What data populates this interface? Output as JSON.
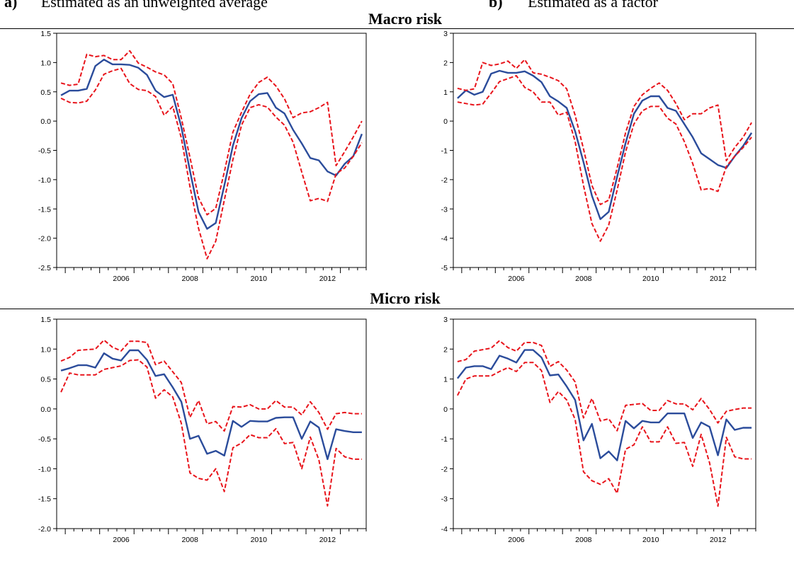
{
  "header": {
    "left_marker": "a)",
    "left_text": "Estimated as an unweighted average",
    "right_marker": "b)",
    "right_text": "Estimated as a factor"
  },
  "sections": [
    {
      "title": "Macro risk"
    },
    {
      "title": "Micro risk"
    }
  ],
  "colors": {
    "estimate": "#2b4c9b",
    "band": "#e8141b",
    "axis": "#000000"
  },
  "chart_data": [
    {
      "type": "line",
      "panel": "Macro risk, a)",
      "x": [
        2004.75,
        2005,
        2005.25,
        2005.5,
        2005.75,
        2006,
        2006.25,
        2006.5,
        2006.75,
        2007,
        2007.25,
        2007.5,
        2007.75,
        2008,
        2008.25,
        2008.5,
        2008.75,
        2009,
        2009.25,
        2009.5,
        2009.75,
        2010,
        2010.25,
        2010.5,
        2010.75,
        2011,
        2011.25,
        2011.5,
        2011.75,
        2012,
        2012.25,
        2012.5,
        2012.75,
        2013,
        2013.25,
        2013.5
      ],
      "ylim": [
        -2.5,
        1.5
      ],
      "yticks": [
        "1.5",
        "1.0",
        "0.5",
        "0.0",
        "-0.5",
        "-1.0",
        "-1.5",
        "-2.0",
        "-2.5"
      ],
      "xtick_labels": [
        "2006",
        "2008",
        "2010",
        "2012"
      ],
      "series": [
        {
          "role": "estimate",
          "style": "solid",
          "values": [
            0.44,
            0.52,
            0.52,
            0.55,
            0.94,
            1.05,
            0.97,
            0.97,
            0.96,
            0.91,
            0.79,
            0.52,
            0.41,
            0.45,
            -0.1,
            -0.85,
            -1.55,
            -1.84,
            -1.74,
            -1.1,
            -0.42,
            0.05,
            0.34,
            0.46,
            0.48,
            0.23,
            0.13,
            -0.15,
            -0.38,
            -0.63,
            -0.67,
            -0.86,
            -0.93,
            -0.73,
            -0.6,
            -0.22
          ]
        },
        {
          "role": "upper",
          "style": "dashed",
          "values": [
            0.65,
            0.61,
            0.63,
            1.14,
            1.1,
            1.12,
            1.05,
            1.05,
            1.2,
            0.99,
            0.92,
            0.84,
            0.79,
            0.64,
            0.05,
            -0.62,
            -1.31,
            -1.6,
            -1.49,
            -0.87,
            -0.19,
            0.15,
            0.46,
            0.66,
            0.75,
            0.6,
            0.38,
            0.06,
            0.14,
            0.16,
            0.23,
            0.32,
            -0.76,
            -0.52,
            -0.27,
            0.0
          ]
        },
        {
          "role": "lower",
          "style": "dashed",
          "values": [
            0.39,
            0.32,
            0.31,
            0.34,
            0.53,
            0.8,
            0.86,
            0.9,
            0.64,
            0.54,
            0.52,
            0.42,
            0.1,
            0.25,
            -0.29,
            -1.12,
            -1.83,
            -2.35,
            -2.05,
            -1.35,
            -0.66,
            -0.07,
            0.23,
            0.28,
            0.24,
            0.07,
            -0.07,
            -0.36,
            -0.87,
            -1.36,
            -1.32,
            -1.37,
            -0.9,
            -0.8,
            -0.6,
            -0.37
          ]
        }
      ]
    },
    {
      "type": "line",
      "panel": "Macro risk, b)",
      "x": [
        2004.75,
        2005,
        2005.25,
        2005.5,
        2005.75,
        2006,
        2006.25,
        2006.5,
        2006.75,
        2007,
        2007.25,
        2007.5,
        2007.75,
        2008,
        2008.25,
        2008.5,
        2008.75,
        2009,
        2009.25,
        2009.5,
        2009.75,
        2010,
        2010.25,
        2010.5,
        2010.75,
        2011,
        2011.25,
        2011.5,
        2011.75,
        2012,
        2012.25,
        2012.5,
        2012.75,
        2013,
        2013.25,
        2013.5
      ],
      "ylim": [
        -5,
        3
      ],
      "yticks": [
        "3",
        "2",
        "1",
        "0",
        "-1",
        "-2",
        "-3",
        "-4",
        "-5"
      ],
      "xtick_labels": [
        "2006",
        "2008",
        "2010",
        "2012"
      ],
      "series": [
        {
          "role": "estimate",
          "style": "solid",
          "values": [
            0.78,
            1.05,
            0.9,
            1.0,
            1.62,
            1.72,
            1.65,
            1.65,
            1.7,
            1.55,
            1.33,
            0.85,
            0.67,
            0.45,
            -0.35,
            -1.4,
            -2.55,
            -3.35,
            -3.1,
            -1.9,
            -0.75,
            0.25,
            0.7,
            0.85,
            0.85,
            0.45,
            0.35,
            -0.1,
            -0.55,
            -1.1,
            -1.3,
            -1.5,
            -1.6,
            -1.2,
            -0.85,
            -0.4
          ]
        },
        {
          "role": "upper",
          "style": "dashed",
          "values": [
            1.12,
            1.05,
            1.1,
            2.0,
            1.9,
            1.95,
            2.05,
            1.8,
            2.1,
            1.65,
            1.6,
            1.5,
            1.38,
            1.1,
            0.2,
            -0.95,
            -2.2,
            -2.85,
            -2.7,
            -1.6,
            -0.4,
            0.5,
            0.9,
            1.12,
            1.3,
            1.05,
            0.6,
            0.05,
            0.25,
            0.25,
            0.45,
            0.55,
            -1.35,
            -0.9,
            -0.55,
            -0.05
          ]
        },
        {
          "role": "lower",
          "style": "dashed",
          "values": [
            0.65,
            0.6,
            0.55,
            0.58,
            0.95,
            1.35,
            1.45,
            1.55,
            1.15,
            1.0,
            0.65,
            0.65,
            0.2,
            0.3,
            -0.7,
            -2.2,
            -3.5,
            -4.1,
            -3.55,
            -2.35,
            -1.05,
            -0.1,
            0.35,
            0.5,
            0.5,
            0.1,
            -0.1,
            -0.7,
            -1.45,
            -2.35,
            -2.3,
            -2.4,
            -1.55,
            -1.2,
            -0.9,
            -0.55
          ]
        }
      ]
    },
    {
      "type": "line",
      "panel": "Micro risk, a)",
      "x": [
        2004.75,
        2005,
        2005.25,
        2005.5,
        2005.75,
        2006,
        2006.25,
        2006.5,
        2006.75,
        2007,
        2007.25,
        2007.5,
        2007.75,
        2008,
        2008.25,
        2008.5,
        2008.75,
        2009,
        2009.25,
        2009.5,
        2009.75,
        2010,
        2010.25,
        2010.5,
        2010.75,
        2011,
        2011.25,
        2011.5,
        2011.75,
        2012,
        2012.25,
        2012.5,
        2012.75,
        2013,
        2013.25,
        2013.5
      ],
      "ylim": [
        -2.0,
        1.5
      ],
      "yticks": [
        "1.5",
        "1.0",
        "0.5",
        "0.0",
        "-0.5",
        "-1.0",
        "-1.5",
        "-2.0"
      ],
      "xtick_labels": [
        "2006",
        "2008",
        "2010",
        "2012"
      ],
      "series": [
        {
          "role": "estimate",
          "style": "solid",
          "values": [
            0.64,
            0.68,
            0.73,
            0.73,
            0.69,
            0.93,
            0.84,
            0.81,
            0.98,
            0.98,
            0.82,
            0.55,
            0.58,
            0.36,
            0.12,
            -0.5,
            -0.45,
            -0.75,
            -0.7,
            -0.78,
            -0.2,
            -0.3,
            -0.2,
            -0.21,
            -0.21,
            -0.15,
            -0.14,
            -0.14,
            -0.5,
            -0.21,
            -0.31,
            -0.84,
            -0.34,
            -0.37,
            -0.39,
            -0.39
          ]
        },
        {
          "role": "upper",
          "style": "dashed",
          "values": [
            0.8,
            0.86,
            0.98,
            0.99,
            1.0,
            1.15,
            1.03,
            0.97,
            1.13,
            1.13,
            1.11,
            0.74,
            0.8,
            0.62,
            0.44,
            -0.14,
            0.14,
            -0.25,
            -0.21,
            -0.37,
            0.04,
            0.03,
            0.07,
            0.0,
            0.0,
            0.14,
            0.03,
            0.03,
            -0.1,
            0.12,
            -0.06,
            -0.34,
            -0.08,
            -0.06,
            -0.08,
            -0.08
          ]
        },
        {
          "role": "lower",
          "style": "dashed",
          "values": [
            0.28,
            0.6,
            0.57,
            0.57,
            0.57,
            0.66,
            0.69,
            0.72,
            0.81,
            0.82,
            0.7,
            0.18,
            0.32,
            0.2,
            -0.24,
            -1.07,
            -1.16,
            -1.19,
            -1.0,
            -1.38,
            -0.65,
            -0.57,
            -0.43,
            -0.48,
            -0.48,
            -0.33,
            -0.58,
            -0.56,
            -1.0,
            -0.47,
            -0.85,
            -1.62,
            -0.66,
            -0.8,
            -0.84,
            -0.84
          ]
        }
      ]
    },
    {
      "type": "line",
      "panel": "Micro risk, b)",
      "x": [
        2004.75,
        2005,
        2005.25,
        2005.5,
        2005.75,
        2006,
        2006.25,
        2006.5,
        2006.75,
        2007,
        2007.25,
        2007.5,
        2007.75,
        2008,
        2008.25,
        2008.5,
        2008.75,
        2009,
        2009.25,
        2009.5,
        2009.75,
        2010,
        2010.25,
        2010.5,
        2010.75,
        2011,
        2011.25,
        2011.5,
        2011.75,
        2012,
        2012.25,
        2012.5,
        2012.75,
        2013,
        2013.25,
        2013.5
      ],
      "ylim": [
        -4,
        3
      ],
      "yticks": [
        "3",
        "2",
        "1",
        "0",
        "-1",
        "-2",
        "-3",
        "-4"
      ],
      "xtick_labels": [
        "2006",
        "2008",
        "2010",
        "2012"
      ],
      "series": [
        {
          "role": "estimate",
          "style": "solid",
          "values": [
            1.02,
            1.38,
            1.43,
            1.43,
            1.33,
            1.78,
            1.68,
            1.55,
            1.97,
            1.97,
            1.72,
            1.12,
            1.15,
            0.75,
            0.3,
            -1.05,
            -0.5,
            -1.65,
            -1.42,
            -1.72,
            -0.4,
            -0.65,
            -0.4,
            -0.45,
            -0.45,
            -0.15,
            -0.15,
            -0.15,
            -0.97,
            -0.45,
            -0.6,
            -1.55,
            -0.35,
            -0.7,
            -0.63,
            -0.63
          ]
        },
        {
          "role": "upper",
          "style": "dashed",
          "values": [
            1.58,
            1.65,
            1.93,
            1.98,
            2.03,
            2.28,
            2.05,
            1.93,
            2.22,
            2.22,
            2.12,
            1.42,
            1.58,
            1.3,
            0.9,
            -0.3,
            0.35,
            -0.4,
            -0.33,
            -0.73,
            0.12,
            0.15,
            0.18,
            -0.05,
            -0.05,
            0.28,
            0.17,
            0.17,
            -0.03,
            0.35,
            -0.02,
            -0.47,
            -0.08,
            -0.02,
            0.03,
            0.03
          ]
        },
        {
          "role": "lower",
          "style": "dashed",
          "values": [
            0.45,
            1.0,
            1.1,
            1.1,
            1.1,
            1.25,
            1.38,
            1.25,
            1.55,
            1.55,
            1.28,
            0.22,
            0.58,
            0.3,
            -0.35,
            -2.1,
            -2.4,
            -2.52,
            -2.33,
            -2.82,
            -1.35,
            -1.2,
            -0.6,
            -1.1,
            -1.1,
            -0.6,
            -1.15,
            -1.12,
            -1.92,
            -0.85,
            -1.8,
            -3.25,
            -0.95,
            -1.6,
            -1.67,
            -1.67
          ]
        }
      ]
    }
  ]
}
